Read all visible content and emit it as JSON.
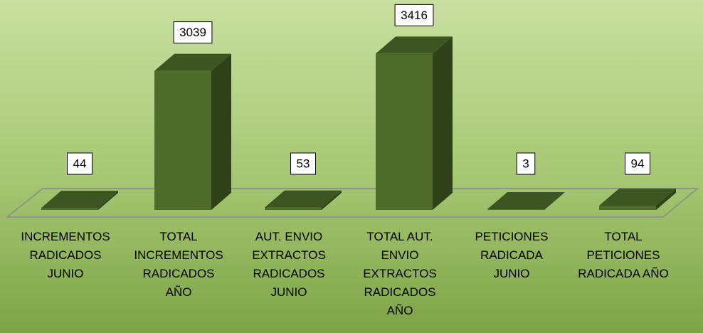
{
  "chart_data": {
    "type": "bar3d",
    "categories": [
      "INCREMENTOS RADICADOS JUNIO",
      "TOTAL INCREMENTOS RADICADOS AÑO",
      "AUT. ENVIO EXTRACTOS RADICADOS JUNIO",
      "TOTAL AUT. ENVIO EXTRACTOS RADICADOS AÑO",
      "PETICIONES RADICADA JUNIO",
      "TOTAL PETICIONES RADICADA AÑO"
    ],
    "values": [
      44,
      3039,
      53,
      3416,
      3,
      94
    ],
    "colors": {
      "front": "#4f6b2a",
      "side": "#2f4217",
      "top": "#3d5520"
    }
  }
}
